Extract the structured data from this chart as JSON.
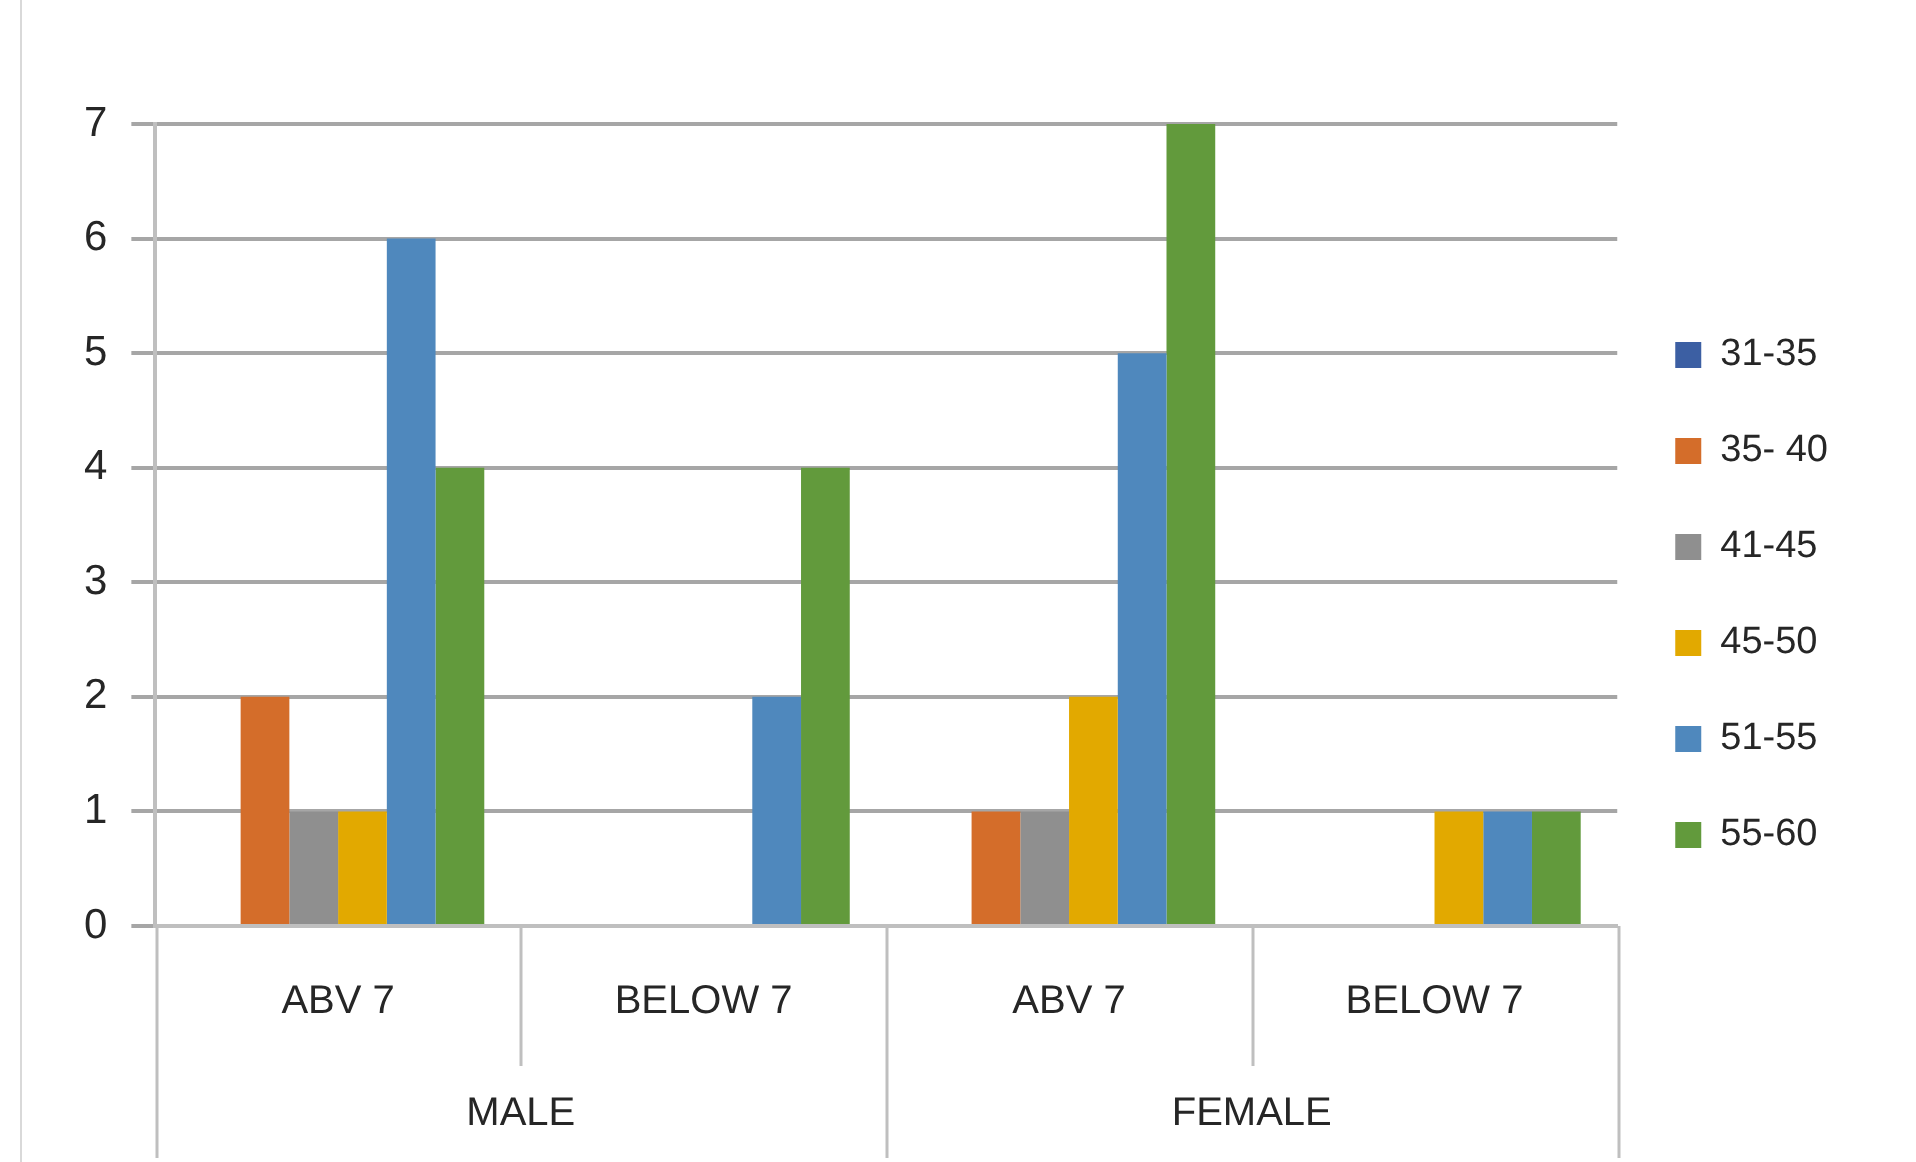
{
  "chart_data": {
    "type": "bar",
    "categories": [
      "ABV 7",
      "BELOW 7",
      "ABV 7",
      "BELOW 7"
    ],
    "series": [
      {
        "name": "31-35",
        "color": "#3c5fa3",
        "values": [
          0,
          0,
          0,
          0
        ]
      },
      {
        "name": "35- 40",
        "color": "#d46d2a",
        "values": [
          2,
          null,
          1,
          0
        ]
      },
      {
        "name": "41-45",
        "color": "#8f8f8f",
        "values": [
          1,
          0,
          1,
          0
        ]
      },
      {
        "name": "45-50",
        "color": "#e2a900",
        "values": [
          1,
          0,
          2,
          1
        ]
      },
      {
        "name": "51-55",
        "color": "#4f88bd",
        "values": [
          6,
          2,
          5,
          1
        ]
      },
      {
        "name": "55-60",
        "color": "#629a3c",
        "values": [
          4,
          4,
          7,
          1
        ]
      }
    ],
    "ylim": [
      0,
      7
    ],
    "yticks": [
      0,
      1,
      2,
      3,
      4,
      5,
      6,
      7
    ],
    "grid": "y",
    "legend": "right",
    "annotations": [
      "MALE",
      "FEMALE"
    ]
  }
}
